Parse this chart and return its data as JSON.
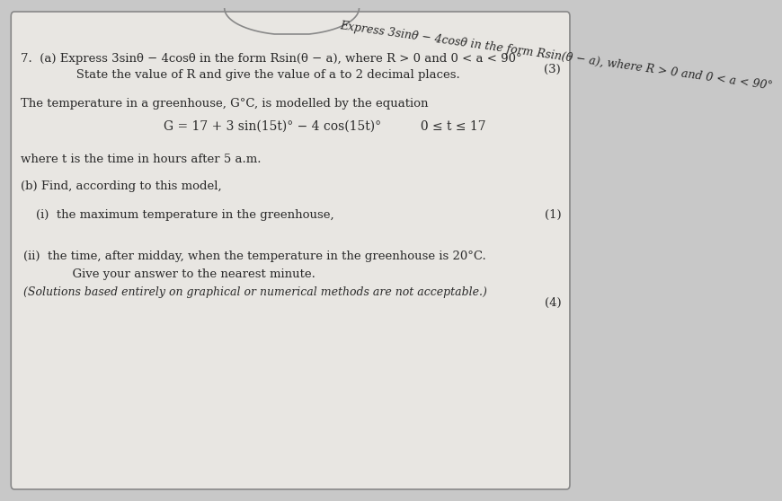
{
  "bg_color": "#c8c8c8",
  "page_color": "#e8e6e2",
  "border_color": "#888888",
  "text_color": "#2a2a2a",
  "font_size": 9.5,
  "marks_font_size": 9.5,
  "line_7a_1": "7.  (a) Express 3sinθ − 4cosθ in the form Rsin(θ − a), where R > 0 and 0 < a < 90°",
  "line_7a_2": "       State the value of R and give the value of a to 2 decimal places.",
  "marks_a": "(3)",
  "line_greenhouse": "The temperature in a greenhouse, G°C, is modelled by the equation",
  "line_equation": "G = 17 + 3 sin(15t)° − 4 cos(15t)°          0 ≤ t ≤ 17",
  "line_where": "where t is the time in hours after 5 a.m.",
  "line_b": "(b) Find, according to this model,",
  "line_bi": "(i)  the maximum temperature in the greenhouse,",
  "marks_bi": "(1)",
  "line_bii_1": "(ii)  the time, after midday, when the temperature in the greenhouse is 20°C.",
  "line_bii_2": "      Give your answer to the nearest minute.",
  "line_bii_3": "(Solutions based entirely on graphical or numerical methods are not acceptable.)",
  "marks_bii": "(4)",
  "top_arc_text": "Express 3sinθ − 4cosθ in the form Rsin(θ − a), where R > 0 and 0 < a < 90°"
}
